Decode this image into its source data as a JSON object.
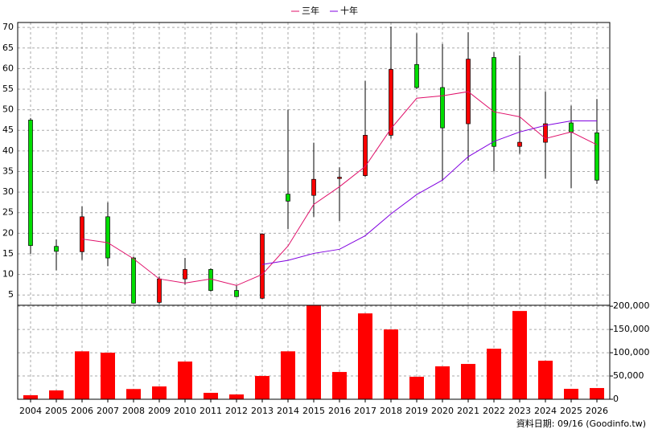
{
  "chart_data": {
    "type": "candlestick",
    "categories": [
      "2004",
      "2005",
      "2006",
      "2007",
      "2008",
      "2009",
      "2010",
      "2011",
      "2012",
      "2013",
      "2014",
      "2015",
      "2016",
      "2017",
      "2018",
      "2019",
      "2020",
      "2021",
      "2022",
      "2023",
      "2024",
      "2025",
      "2026"
    ],
    "candles": {
      "open": [
        47.5,
        16.8,
        15.5,
        24,
        14,
        3.2,
        8.9,
        11.2,
        6.1,
        4.2,
        29.5,
        29.2,
        33.3,
        34,
        43.8,
        61,
        55.4,
        46.6,
        62.7,
        41.1,
        42.1,
        46.8,
        44.4
      ],
      "high": [
        48,
        18.5,
        26.5,
        27.5,
        14.3,
        9.5,
        14,
        11.5,
        7.3,
        20,
        50,
        42,
        36,
        57,
        70.2,
        68.6,
        66,
        68.8,
        64,
        63.2,
        54.4,
        51,
        52.6
      ],
      "low": [
        15,
        11,
        13.5,
        12,
        3,
        2.8,
        7.5,
        5.8,
        4.5,
        4,
        21,
        24,
        23,
        33.7,
        43,
        55,
        32.7,
        37.6,
        35,
        39.3,
        33.3,
        31,
        32
      ],
      "close": [
        17,
        15.6,
        24,
        14,
        3,
        8.9,
        11.2,
        6.1,
        4.6,
        19.8,
        27.8,
        33.1,
        33.6,
        43.8,
        59.8,
        55.4,
        45.6,
        62.3,
        41.1,
        42.1,
        46.6,
        44.6,
        32.9
      ]
    },
    "up_color": "#ff0000",
    "down_color": "#00dd00",
    "series": [
      {
        "name": "三年",
        "color": "#e0106a",
        "values": [
          null,
          null,
          18.6,
          17.7,
          13.8,
          8.9,
          7.9,
          8.9,
          7.3,
          10,
          16.9,
          27,
          31.3,
          36.2,
          45.4,
          52.8,
          53.4,
          54.4,
          49.5,
          48.3,
          43,
          44.6,
          41.5
        ]
      },
      {
        "name": "十年",
        "color": "#8000e0",
        "values": [
          null,
          null,
          null,
          null,
          null,
          null,
          null,
          null,
          null,
          12.4,
          13.4,
          15.1,
          16.1,
          19.4,
          24.7,
          29.4,
          32.9,
          38.6,
          42.3,
          44.6,
          46.2,
          47.3,
          47.3
        ]
      }
    ],
    "ylim": [
      2.5,
      71.2
    ],
    "yticks": [
      5,
      10,
      15,
      20,
      25,
      30,
      35,
      40,
      45,
      50,
      55,
      60,
      65,
      70
    ],
    "grid": true,
    "volume": {
      "color": "#ff0000",
      "values": [
        8600,
        19000,
        103000,
        100000,
        22000,
        27500,
        81000,
        13800,
        10300,
        50000,
        103000,
        202000,
        58600,
        184500,
        150000,
        48300,
        70700,
        75900,
        108600,
        189700,
        82800,
        22400,
        24100
      ],
      "ylim": [
        0,
        202000
      ],
      "yticks": [
        0,
        {
          "value": 50000,
          "label": "50,000"
        },
        {
          "value": 100000,
          "label": "100,000"
        },
        {
          "value": 150000,
          "label": "150,000"
        },
        {
          "value": 200000,
          "label": "200,000"
        }
      ]
    },
    "note": "資料日期: 09/16  (Goodinfo.tw)"
  }
}
